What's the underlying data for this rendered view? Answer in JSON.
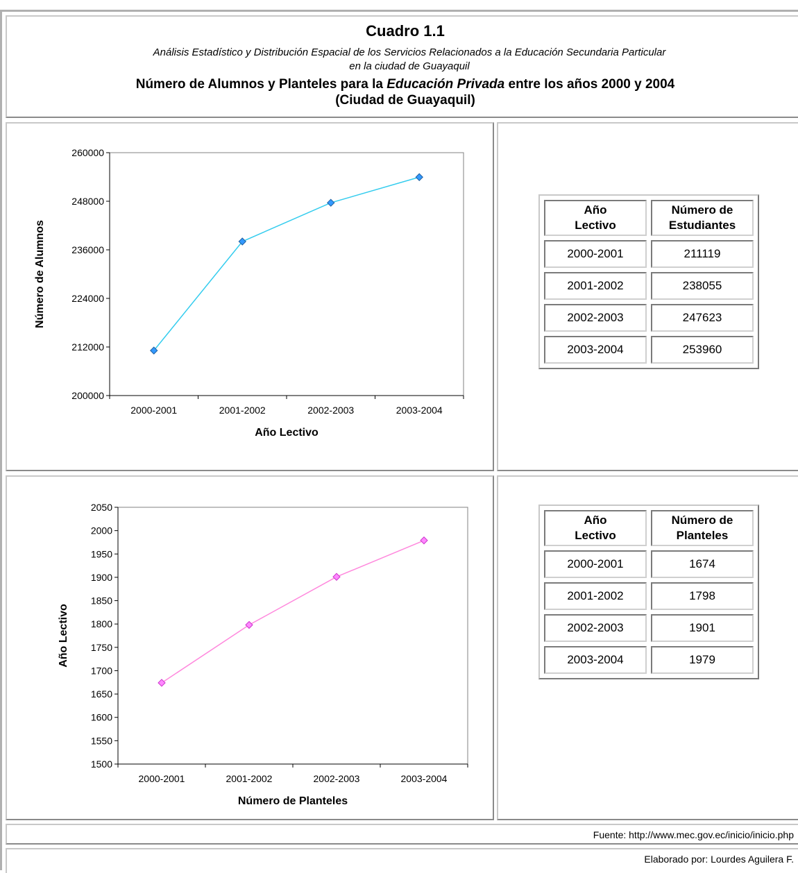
{
  "header": {
    "title": "Cuadro 1.1",
    "subtitle_line1": "Análisis Estadístico y Distribución  Espacial de los  Servicios Relacionados a la Educación Secundaria Particular",
    "subtitle_line2": "en la ciudad de Guayaquil",
    "heading_pre": "Número de Alumnos y Planteles para la ",
    "heading_em": "Educación Privada",
    "heading_post": " entre los años 2000 y 2004",
    "heading_line2": "(Ciudad de Guayaquil)"
  },
  "colors": {
    "series1_line": "#33ccee",
    "series1_marker": "#3399ff",
    "series2_line": "#ff88dd",
    "series2_marker": "#ff88ff"
  },
  "chart_data": [
    {
      "type": "line",
      "categories": [
        "2000-2001",
        "2001-2002",
        "2002-2003",
        "2003-2004"
      ],
      "values": [
        211119,
        238055,
        247623,
        253960
      ],
      "xlabel": "Año Lectivo",
      "ylabel": "Número de Alumnos",
      "ylim": [
        200000,
        260000
      ],
      "yticks": [
        "200000",
        "212000",
        "224000",
        "236000",
        "248000",
        "260000"
      ],
      "marker": "diamond",
      "grid": false,
      "legend": "none"
    },
    {
      "type": "line",
      "categories": [
        "2000-2001",
        "2001-2002",
        "2002-2003",
        "2003-2004"
      ],
      "values": [
        1674,
        1798,
        1901,
        1979
      ],
      "xlabel": "Número de Planteles",
      "ylabel": "Año Lectivo",
      "ylim": [
        1500,
        2050
      ],
      "yticks": [
        "1500",
        "1550",
        "1600",
        "1650",
        "1700",
        "1750",
        "1800",
        "1850",
        "1900",
        "1950",
        "2000",
        "2050"
      ],
      "marker": "diamond",
      "grid": false,
      "legend": "none"
    }
  ],
  "table1": {
    "header_col1_line1": "Año",
    "header_col1_line2": "Lectivo",
    "header_col2_line1": "Número de",
    "header_col2_line2": "Estudiantes",
    "rows": [
      {
        "year": "2000-2001",
        "value": "211119"
      },
      {
        "year": "2001-2002",
        "value": "238055"
      },
      {
        "year": "2002-2003",
        "value": "247623"
      },
      {
        "year": "2003-2004",
        "value": "253960"
      }
    ]
  },
  "table2": {
    "header_col1_line1": "Año",
    "header_col1_line2": "Lectivo",
    "header_col2_line1": "Número de",
    "header_col2_line2": "Planteles",
    "rows": [
      {
        "year": "2000-2001",
        "value": "1674"
      },
      {
        "year": "2001-2002",
        "value": "1798"
      },
      {
        "year": "2002-2003",
        "value": "1901"
      },
      {
        "year": "2003-2004",
        "value": "1979"
      }
    ]
  },
  "footer": {
    "source": "Fuente: http://www.mec.gov.ec/inicio/inicio.php",
    "author": "Elaborado por: Lourdes Aguilera F."
  }
}
